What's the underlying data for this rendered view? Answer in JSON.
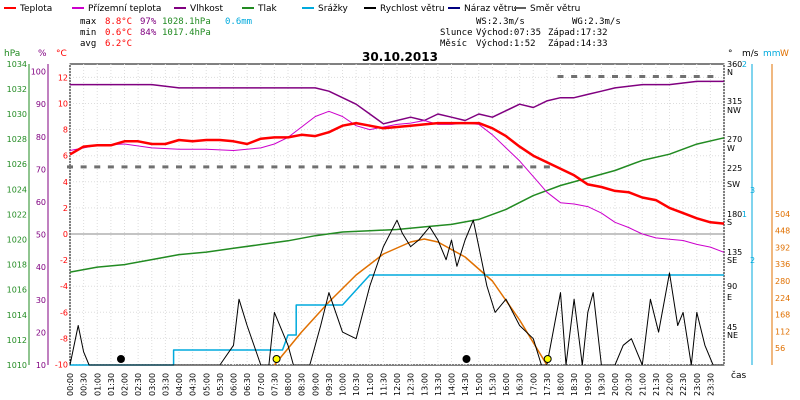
{
  "legend": [
    {
      "label": "Teplota",
      "color": "#ff0000"
    },
    {
      "label": "Přízemní teplota",
      "color": "#cc00cc"
    },
    {
      "label": "Vlhkost",
      "color": "#800080"
    },
    {
      "label": "Tlak",
      "color": "#228b22"
    },
    {
      "label": "Srážky",
      "color": "#00aadd"
    },
    {
      "label": "Rychlost větru",
      "color": "#000000"
    },
    {
      "label": "Náraz větru",
      "color": "#000080"
    },
    {
      "label": "Směr větru",
      "color": "#606060"
    }
  ],
  "stats": {
    "max": {
      "label": "max",
      "temp": "8.8°C",
      "hum": "97%",
      "press": "1028.1hPa",
      "rain": "0.6mm"
    },
    "min": {
      "label": "min",
      "temp": "0.6°C",
      "hum": "84%",
      "press": "1017.4hPa"
    },
    "avg": {
      "label": "avg",
      "temp": "6.2°C"
    }
  },
  "wind_info": {
    "ws": "WS:2.3m/s",
    "wg": "WG:2.3m/s"
  },
  "sun": {
    "label": "Slunce",
    "rise": "Východ:07:35",
    "set": "Západ:17:32"
  },
  "moon": {
    "label": "Měsíc",
    "rise": "Východ:1:52",
    "set": "Západ:14:33"
  },
  "date": "30.10.2013",
  "axes": {
    "hpa_unit": "hPa",
    "pct_unit": "%",
    "degc_unit": "°C",
    "deg_unit": "°",
    "ms_unit": "m/s",
    "mm_unit": "mm",
    "w_unit": "W",
    "time_label": "čas",
    "hpa_ticks": [
      "1034",
      "1032",
      "1030",
      "1028",
      "1026",
      "1024",
      "1022",
      "1020",
      "1018",
      "1016",
      "1014",
      "1012",
      "1010"
    ],
    "pct_ticks": [
      "100",
      "90",
      "80",
      "70",
      "60",
      "50",
      "40",
      "30",
      "20",
      "10"
    ],
    "temp_ticks": [
      "12",
      "10",
      "8",
      "6",
      "4",
      "2",
      "0",
      "-2",
      "-4",
      "-6",
      "-8",
      "-10"
    ],
    "dir_ticks": [
      "360",
      "N",
      "315",
      "NW",
      "270",
      "W",
      "225",
      "SW",
      "180",
      "S",
      "135",
      "SE",
      "90",
      "E",
      "45",
      "NE"
    ],
    "ms_ticks": [
      "2",
      "1"
    ],
    "mm_ticks": [
      "3",
      "2"
    ],
    "w_ticks": [
      "504",
      "448",
      "392",
      "336",
      "280",
      "224",
      "168",
      "112",
      "56"
    ],
    "x_ticks": [
      "00:00",
      "00:30",
      "01:00",
      "01:30",
      "02:00",
      "02:30",
      "03:00",
      "03:30",
      "04:00",
      "04:30",
      "05:00",
      "05:30",
      "06:00",
      "06:30",
      "07:00",
      "07:30",
      "08:00",
      "08:30",
      "09:00",
      "09:30",
      "10:00",
      "10:30",
      "11:00",
      "11:30",
      "12:00",
      "12:30",
      "13:00",
      "13:30",
      "14:00",
      "14:30",
      "15:00",
      "15:30",
      "16:00",
      "16:30",
      "17:00",
      "17:30",
      "18:00",
      "18:30",
      "19:00",
      "19:30",
      "20:00",
      "20:30",
      "21:00",
      "21:30",
      "22:00",
      "22:30",
      "23:00",
      "23:30"
    ]
  },
  "chart_data": {
    "type": "line",
    "title": "30.10.2013",
    "xlabel": "čas",
    "x_range_hours": [
      0,
      24
    ],
    "grid": true,
    "series": [
      {
        "name": "Teplota",
        "unit": "°C",
        "color": "#ff0000",
        "x": [
          0,
          0.5,
          1,
          1.5,
          2,
          2.5,
          3,
          3.5,
          4,
          4.5,
          5,
          5.5,
          6,
          6.5,
          7,
          7.5,
          8,
          8.5,
          9,
          9.5,
          10,
          10.5,
          11,
          11.5,
          12,
          12.5,
          13,
          13.5,
          14,
          14.5,
          15,
          15.5,
          16,
          16.5,
          17,
          17.5,
          18,
          18.5,
          19,
          19.5,
          20,
          20.5,
          21,
          21.5,
          22,
          22.5,
          23,
          23.5,
          24
        ],
        "values": [
          6.1,
          6.7,
          6.8,
          6.8,
          7.1,
          7.1,
          6.9,
          6.9,
          7.2,
          7.1,
          7.2,
          7.2,
          7.1,
          6.9,
          7.3,
          7.4,
          7.4,
          7.6,
          7.5,
          7.8,
          8.3,
          8.5,
          8.3,
          8.1,
          8.2,
          8.3,
          8.4,
          8.5,
          8.5,
          8.5,
          8.5,
          8.1,
          7.5,
          6.7,
          6.0,
          5.5,
          5.0,
          4.5,
          3.8,
          3.6,
          3.3,
          3.2,
          2.8,
          2.6,
          2.0,
          1.6,
          1.2,
          0.9,
          0.8
        ]
      },
      {
        "name": "Přízemní teplota",
        "unit": "°C",
        "color": "#cc00cc",
        "x": [
          0,
          1,
          2,
          3,
          4,
          5,
          6,
          7,
          7.5,
          8,
          8.5,
          9,
          9.5,
          10,
          10.5,
          11,
          11.5,
          12,
          12.5,
          13,
          13.5,
          14,
          14.5,
          15,
          15.5,
          16,
          16.5,
          17,
          17.5,
          18,
          18.5,
          19,
          19.5,
          20,
          20.5,
          21,
          21.5,
          22,
          22.5,
          23,
          23.5,
          24
        ],
        "values": [
          6.4,
          6.8,
          6.9,
          6.6,
          6.5,
          6.5,
          6.4,
          6.6,
          6.9,
          7.4,
          8.2,
          9.0,
          9.4,
          9.0,
          8.3,
          8.0,
          8.2,
          8.4,
          8.5,
          8.7,
          8.4,
          8.4,
          8.5,
          8.4,
          7.6,
          6.6,
          5.6,
          4.4,
          3.2,
          2.4,
          2.3,
          2.1,
          1.6,
          0.9,
          0.5,
          0.0,
          -0.3,
          -0.4,
          -0.5,
          -0.8,
          -1.0,
          -1.4
        ]
      },
      {
        "name": "Vlhkost",
        "unit": "%",
        "color": "#800080",
        "x": [
          0,
          1,
          2,
          3,
          4,
          5,
          6,
          7,
          8,
          9,
          9.5,
          10,
          10.5,
          11,
          11.5,
          12,
          12.5,
          13,
          13.5,
          14,
          14.5,
          15,
          15.5,
          16,
          16.5,
          17,
          17.5,
          18,
          18.5,
          19,
          19.5,
          20,
          21,
          22,
          23,
          24
        ],
        "values": [
          96,
          96,
          96,
          96,
          95,
          95,
          95,
          95,
          95,
          95,
          94,
          92,
          90,
          87,
          84,
          85,
          86,
          85,
          87,
          86,
          85,
          87,
          86,
          88,
          90,
          89,
          91,
          92,
          92,
          93,
          94,
          95,
          96,
          96,
          97,
          97
        ]
      },
      {
        "name": "Tlak",
        "unit": "hPa",
        "color": "#228b22",
        "x": [
          0,
          1,
          2,
          3,
          4,
          5,
          6,
          7,
          8,
          9,
          10,
          11,
          12,
          13,
          14,
          15,
          16,
          17,
          18,
          19,
          20,
          21,
          22,
          23,
          24
        ],
        "values": [
          1017.4,
          1017.8,
          1018.0,
          1018.4,
          1018.8,
          1019.0,
          1019.3,
          1019.6,
          1019.9,
          1020.3,
          1020.6,
          1020.7,
          1020.8,
          1021.0,
          1021.2,
          1021.6,
          1022.4,
          1023.5,
          1024.3,
          1024.9,
          1025.5,
          1026.3,
          1026.8,
          1027.6,
          1028.1
        ]
      },
      {
        "name": "Srážky",
        "unit": "mm",
        "color": "#00aadd",
        "x": [
          0,
          3.8,
          3.8,
          7.8,
          7.8,
          8.0,
          8.0,
          8.3,
          8.3,
          9.0,
          9.0,
          10.0,
          10.0,
          11.0,
          11.0,
          11.3,
          11.3,
          24
        ],
        "values": [
          0,
          0,
          0.1,
          0.1,
          0.1,
          0.2,
          0.2,
          0.2,
          0.4,
          0.4,
          0.4,
          0.4,
          0.4,
          0.6,
          0.6,
          0.6,
          0.6,
          0.6
        ]
      },
      {
        "name": "Rychlost větru",
        "unit": "m/s",
        "color": "#000000",
        "x": [
          0,
          0.3,
          0.5,
          0.7,
          1,
          5,
          5.5,
          6,
          6.2,
          6.5,
          7,
          7.3,
          7.5,
          8,
          8.2,
          8.4,
          8.8,
          9.2,
          9.5,
          10,
          10.5,
          11,
          11.5,
          12,
          12.2,
          12.5,
          12.8,
          13.2,
          13.5,
          13.8,
          14,
          14.2,
          14.5,
          14.8,
          15,
          15.3,
          15.6,
          16,
          16.5,
          17,
          17.3,
          17.5,
          18,
          18.2,
          18.5,
          18.8,
          19,
          19.2,
          19.5,
          20,
          20.3,
          20.6,
          21,
          21.3,
          21.6,
          22,
          22.3,
          22.5,
          22.8,
          23,
          23.3,
          23.6,
          24
        ],
        "values": [
          0,
          0.6,
          0.2,
          0,
          0,
          0,
          0,
          0.3,
          1.0,
          0.6,
          0,
          0,
          0.8,
          0.3,
          0,
          0,
          0,
          0.6,
          1.1,
          0.5,
          0.4,
          1.2,
          1.8,
          2.2,
          2.0,
          1.8,
          1.9,
          2.1,
          1.9,
          1.6,
          1.9,
          1.5,
          1.9,
          2.2,
          1.8,
          1.2,
          0.8,
          1.0,
          0.6,
          0.4,
          0,
          0,
          1.1,
          0,
          1.0,
          0,
          0.8,
          1.1,
          0,
          0,
          0.3,
          0.4,
          0,
          1.0,
          0.5,
          1.4,
          0.6,
          0.8,
          0,
          0.8,
          0.3,
          0,
          0
        ]
      },
      {
        "name": "Směr větru",
        "unit": "°",
        "color": "#606060"
      },
      {
        "name": "Náraz větru",
        "unit": "m/s",
        "color": "#000080"
      }
    ],
    "solar_radiation": {
      "unit": "W",
      "color": "#e07000",
      "x": [
        7.5,
        8.5,
        9.5,
        10.5,
        11.5,
        12.5,
        13,
        13.5,
        14.5,
        15.5,
        16.5,
        17.5
      ],
      "values": [
        0,
        110,
        210,
        300,
        370,
        410,
        420,
        410,
        360,
        280,
        150,
        0
      ]
    },
    "wind_direction_deg": {
      "x": [
        0,
        0.5,
        1,
        1.5,
        2,
        2.5,
        3,
        3.5,
        4,
        4.5,
        5,
        5.5,
        6,
        6.5,
        7,
        7.5,
        8,
        8.5,
        9,
        9.5,
        10,
        10.5,
        11,
        11.5,
        12,
        12.5,
        13,
        13.5,
        14,
        14.5,
        15,
        15.5,
        16,
        16.5,
        17,
        17.5,
        18,
        18.5,
        19,
        19.5,
        20,
        20.5,
        21,
        21.5,
        22,
        22.5,
        23,
        23.5
      ],
      "values": [
        247,
        247,
        247,
        247,
        247,
        247,
        247,
        247,
        247,
        247,
        247,
        247,
        247,
        247,
        247,
        247,
        247,
        247,
        247,
        247,
        247,
        247,
        247,
        247,
        247,
        247,
        247,
        247,
        247,
        247,
        247,
        247,
        247,
        247,
        247,
        247,
        360,
        360,
        360,
        360,
        360,
        360,
        360,
        360,
        360,
        360,
        360,
        360
      ]
    }
  }
}
